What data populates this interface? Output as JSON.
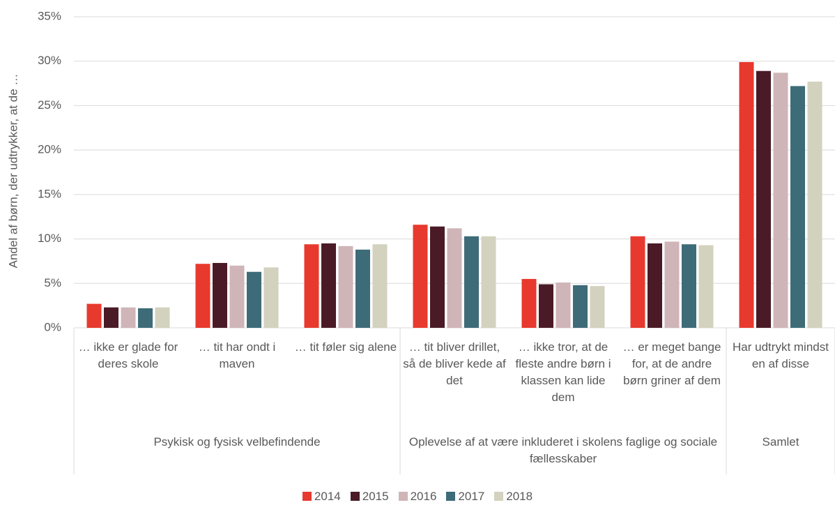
{
  "chart_data": {
    "type": "bar",
    "y_label": "Andel af børn, der udtrykker, at de …",
    "category_groups": [
      {
        "label": "Psykisk og fysisk velbefindende",
        "categories": [
          "… ikke er glade for deres skole",
          "… tit har ondt i maven",
          "… tit føler sig alene"
        ]
      },
      {
        "label": "Oplevelse af at være inkluderet i skolens faglige og sociale fællesskaber",
        "categories": [
          "… tit bliver drillet, så de bliver kede af det",
          "… ikke tror, at de fleste andre børn i klassen kan lide dem",
          "… er meget bange for, at de andre børn griner af dem"
        ]
      },
      {
        "label": "Samlet",
        "categories": [
          "Har udtrykt mindst en af disse"
        ]
      }
    ],
    "series": [
      {
        "name": "2014",
        "color": "#e8392e",
        "values": [
          2.7,
          7.2,
          9.4,
          11.6,
          5.5,
          10.3,
          29.9
        ]
      },
      {
        "name": "2015",
        "color": "#4a1b26",
        "values": [
          2.3,
          7.3,
          9.5,
          11.4,
          4.9,
          9.5,
          28.9
        ]
      },
      {
        "name": "2016",
        "color": "#cfb5b8",
        "values": [
          2.3,
          7.0,
          9.2,
          11.2,
          5.1,
          9.7,
          28.7
        ]
      },
      {
        "name": "2017",
        "color": "#3e6b78",
        "values": [
          2.2,
          6.3,
          8.8,
          10.3,
          4.8,
          9.4,
          27.2
        ]
      },
      {
        "name": "2018",
        "color": "#d3d2bf",
        "values": [
          2.3,
          6.8,
          9.4,
          10.3,
          4.7,
          9.3,
          27.7
        ]
      }
    ],
    "ylim": [
      0,
      35
    ],
    "yticks": [
      {
        "value": 0,
        "label": "0%"
      },
      {
        "value": 5,
        "label": "5%"
      },
      {
        "value": 10,
        "label": "10%"
      },
      {
        "value": 15,
        "label": "15%"
      },
      {
        "value": 20,
        "label": "20%"
      },
      {
        "value": 25,
        "label": "25%"
      },
      {
        "value": 30,
        "label": "30%"
      },
      {
        "value": 35,
        "label": "35%"
      }
    ],
    "grid": true,
    "legend": "bottom"
  }
}
